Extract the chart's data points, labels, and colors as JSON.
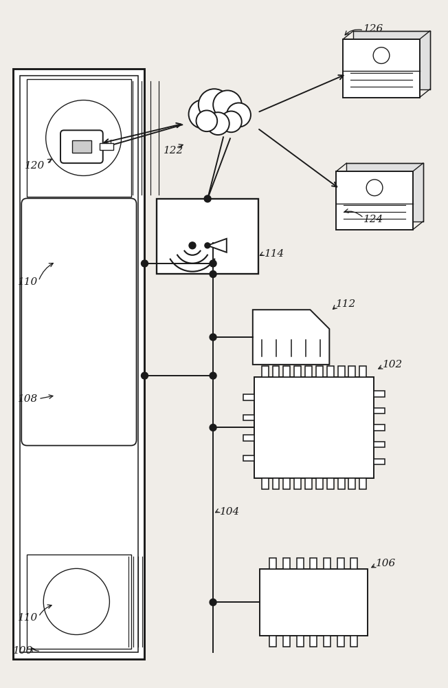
{
  "bg_color": "#f0ede8",
  "line_color": "#1a1a1a",
  "fig_w": 6.52,
  "fig_h": 10.0,
  "dpi": 100
}
